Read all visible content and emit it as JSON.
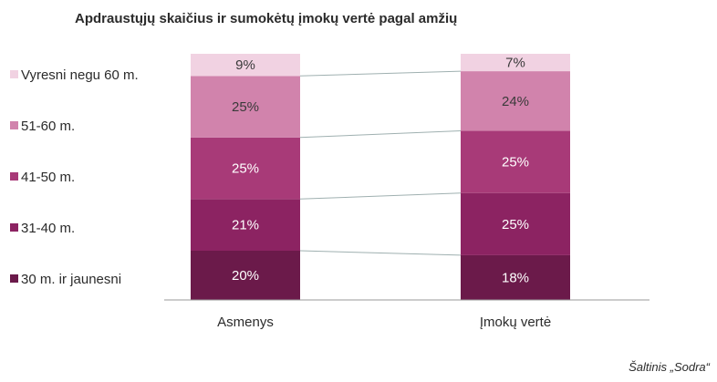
{
  "chart_data": {
    "type": "bar",
    "stacked": true,
    "normalized": true,
    "title": "Apdraustųjų skaičius ir sumokėtų įmokų vertė pagal amžių",
    "categories": [
      "Asmenys",
      "Įmokų vertė"
    ],
    "series": [
      {
        "name": "30 m. ir jaunesni",
        "values": [
          20,
          18
        ],
        "labels": [
          "20%",
          "18%"
        ],
        "color": "#6b1a4a",
        "label_color": "#ffffff"
      },
      {
        "name": "31-40 m.",
        "values": [
          21,
          25
        ],
        "labels": [
          "21%",
          "25%"
        ],
        "color": "#8c2362",
        "label_color": "#ffffff"
      },
      {
        "name": "41-50 m.",
        "values": [
          25,
          25
        ],
        "labels": [
          "25%",
          "25%"
        ],
        "color": "#a83a78",
        "label_color": "#ffffff"
      },
      {
        "name": "51-60 m.",
        "values": [
          25,
          24
        ],
        "labels": [
          "25%",
          "24%"
        ],
        "color": "#d183ac",
        "label_color": "#3a3a3a"
      },
      {
        "name": "Vyresni negu 60 m.",
        "values": [
          9,
          7
        ],
        "labels": [
          "9%",
          "7%"
        ],
        "color": "#f1d2e2",
        "label_color": "#3a3a3a"
      }
    ],
    "ylim": [
      0,
      100
    ],
    "legend_position": "left",
    "grid": false,
    "series_lines": true,
    "source": "Šaltinis „Sodra“"
  }
}
